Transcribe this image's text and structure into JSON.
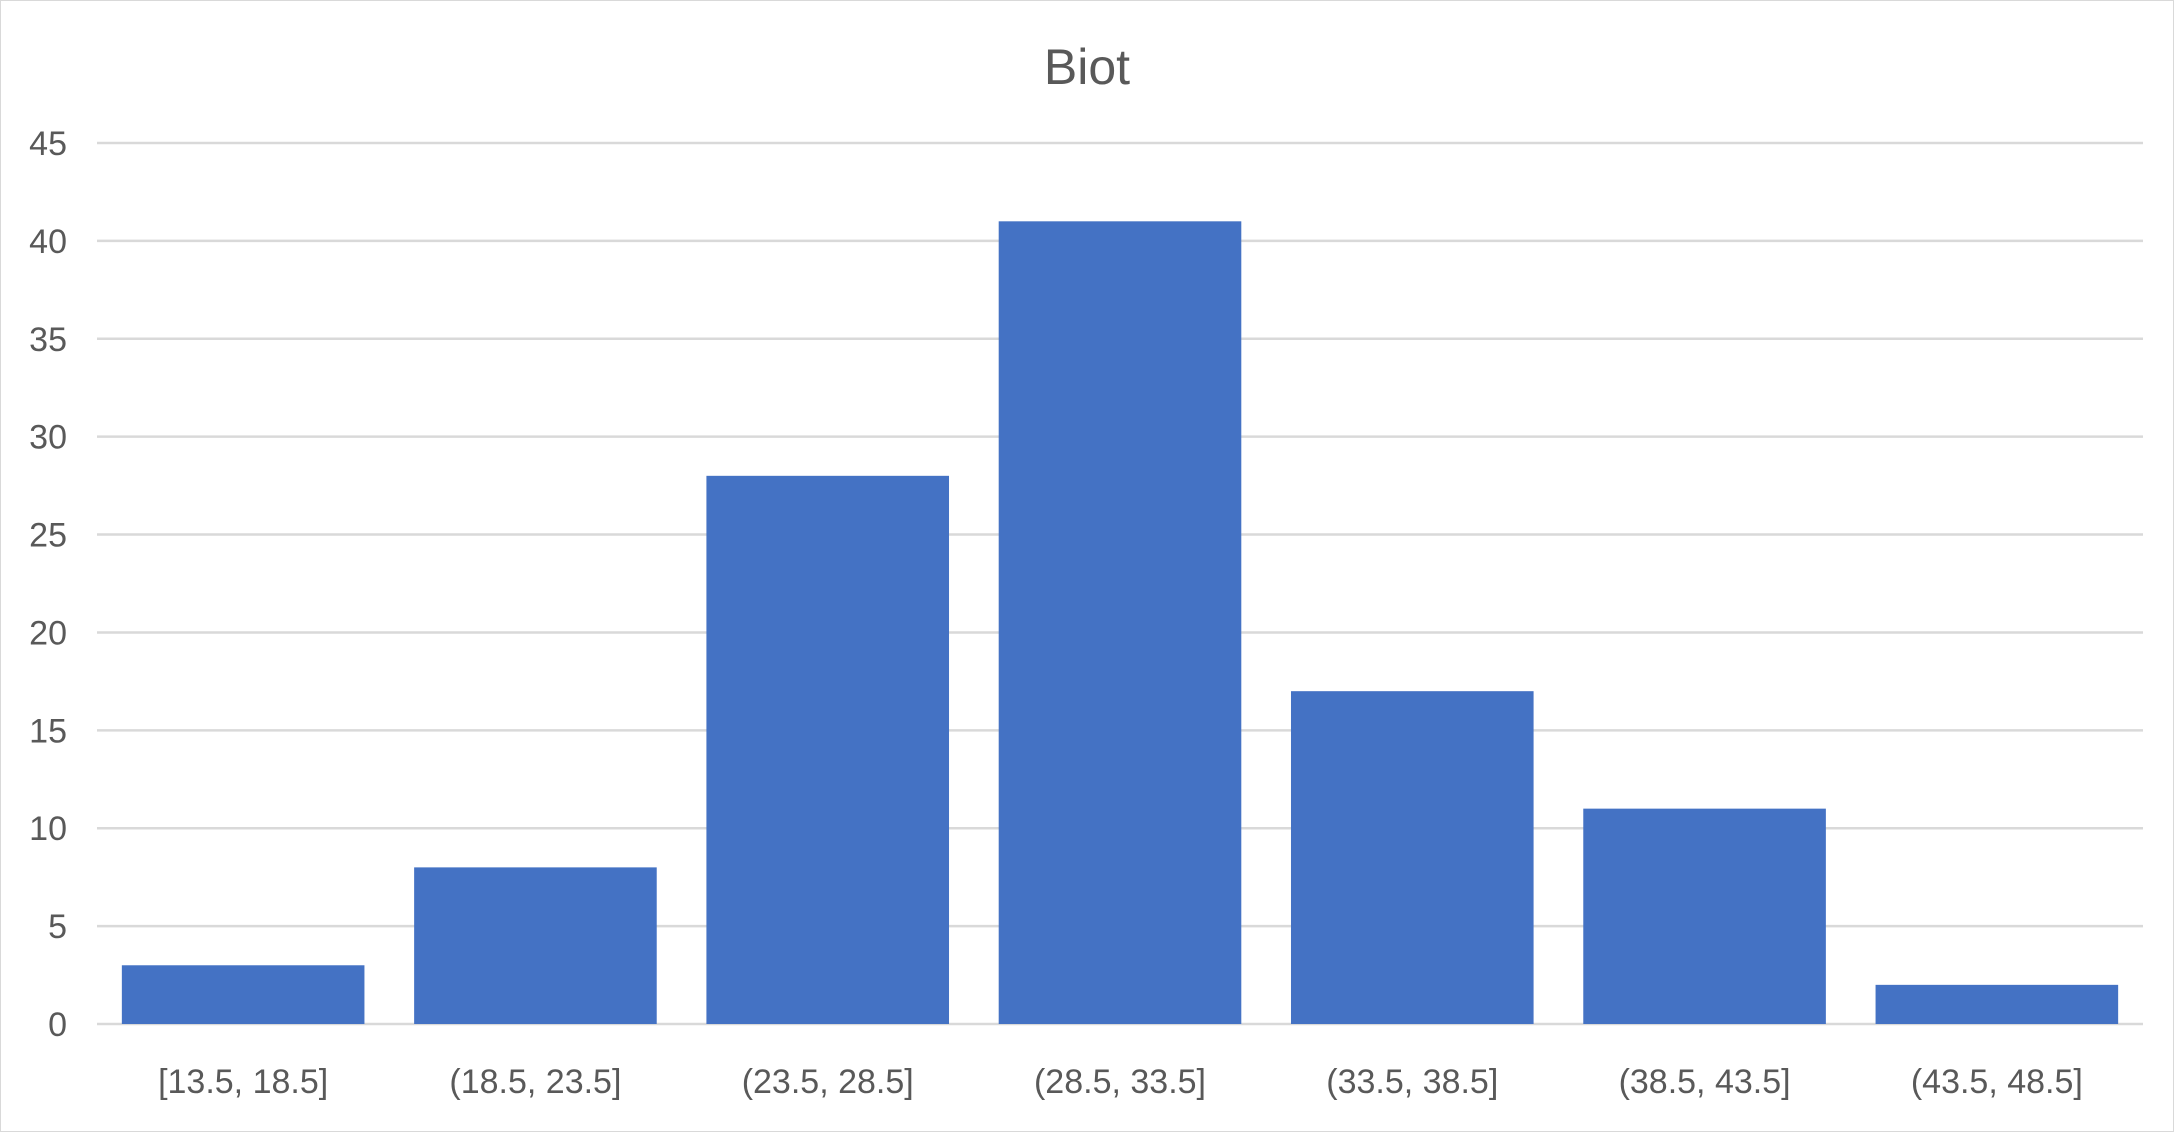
{
  "chart_data": {
    "type": "bar",
    "title": "Biot",
    "xlabel": "",
    "ylabel": "",
    "categories": [
      "[13.5, 18.5]",
      "(18.5, 23.5]",
      "(23.5, 28.5]",
      "(28.5, 33.5]",
      "(33.5, 38.5]",
      "(38.5, 43.5]",
      "(43.5, 48.5]"
    ],
    "values": [
      3,
      8,
      28,
      41,
      17,
      11,
      2
    ],
    "ylim": [
      0,
      45
    ],
    "yticks": [
      0,
      5,
      10,
      15,
      20,
      25,
      30,
      35,
      40,
      45
    ],
    "grid": true,
    "legend": "none",
    "bar_color": "#4472C4"
  }
}
